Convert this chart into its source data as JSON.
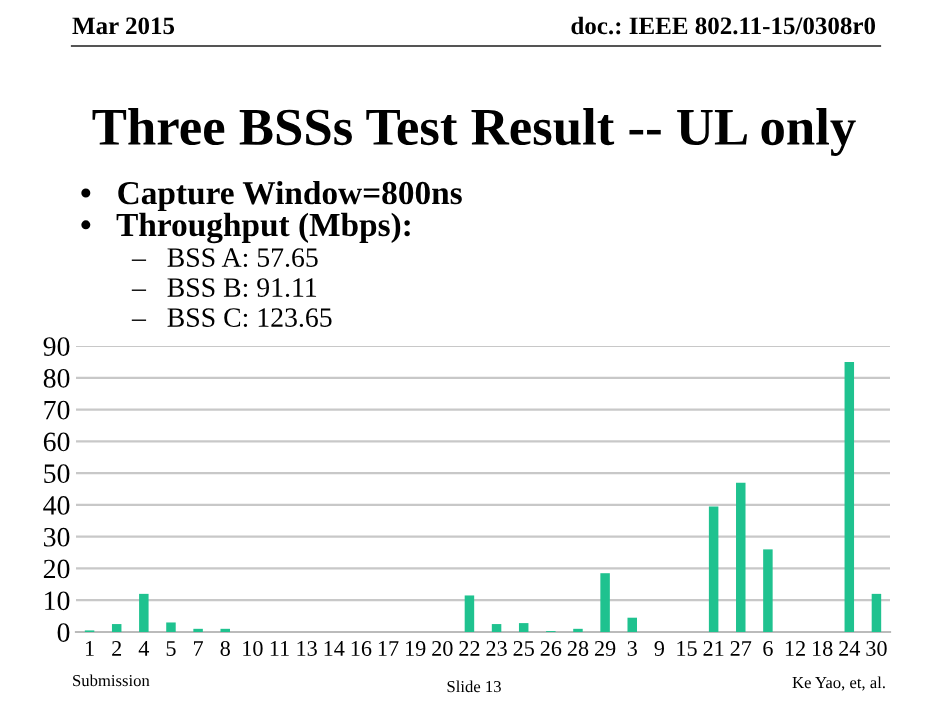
{
  "chart_data": {
    "type": "bar",
    "title": "Three BSSs Test Result -- UL only",
    "annotations": [
      "Mar 2015",
      "doc.: IEEE 802.11-15/0308r0",
      "•   Capture Window=800ns",
      "•   Throughput (Mbps):",
      "–   BSS A: 57.65",
      "–   BSS B: 91.11",
      "–   BSS C: 123.65",
      "Submission",
      "Slide 13",
      "Ke Yao, et, al."
    ],
    "categories": [
      "1",
      "2",
      "4",
      "5",
      "7",
      "8",
      "10",
      "11",
      "13",
      "14",
      "16",
      "17",
      "19",
      "20",
      "22",
      "23",
      "25",
      "26",
      "28",
      "29",
      "3",
      "9",
      "15",
      "21",
      "27",
      "6",
      "12",
      "18",
      "24",
      "30"
    ],
    "values": [
      0.5,
      2.5,
      12,
      3,
      1,
      1,
      0,
      0,
      0,
      0,
      0,
      0,
      0,
      0,
      11.5,
      2.5,
      2.8,
      0.3,
      1,
      18.5,
      4.5,
      0,
      0,
      39.5,
      47,
      26,
      0,
      0,
      85,
      12
    ],
    "color": "#1fc28f",
    "ylim": [
      0,
      90
    ],
    "yticks": [
      0,
      10,
      20,
      30,
      40,
      50,
      60,
      70,
      80,
      90
    ],
    "grid": "y"
  }
}
